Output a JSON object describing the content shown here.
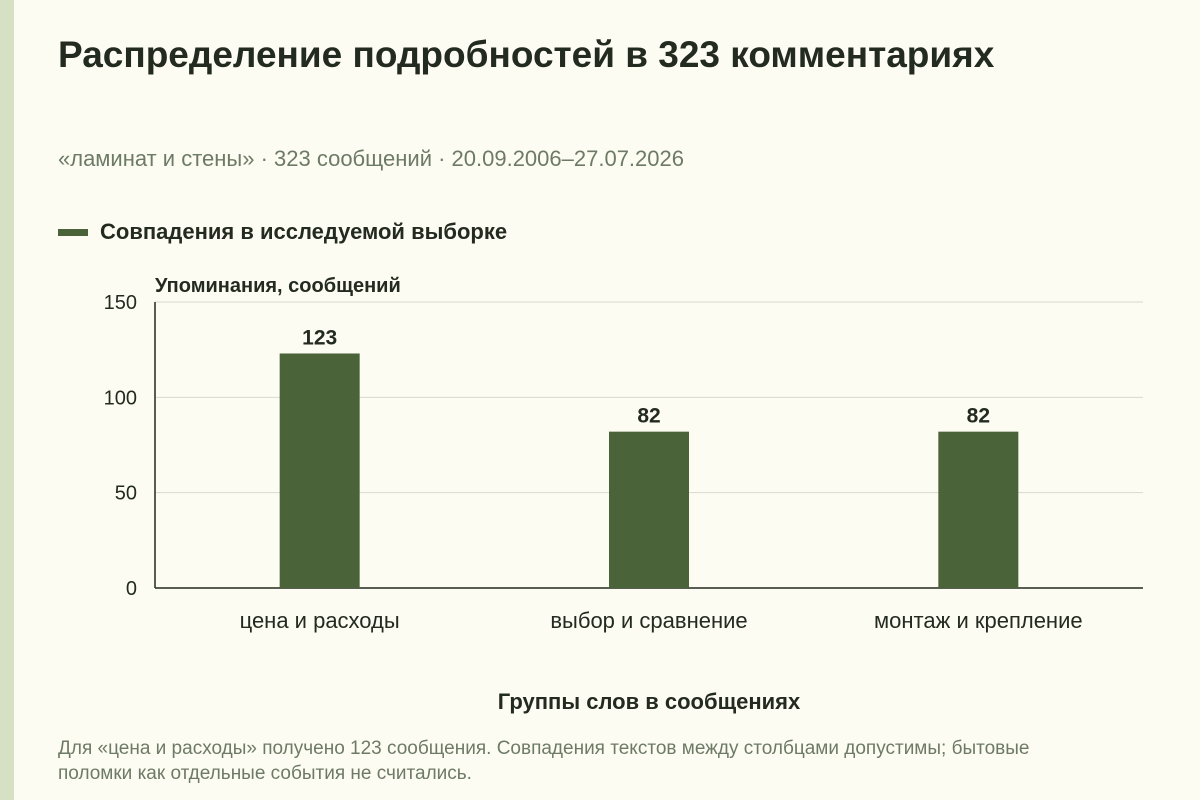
{
  "title": "Распределение подробностей в 323 комментариях",
  "subtitle": "«ламинат и стены» · 323 сообщений · 20.09.2006–27.07.2026",
  "colors": {
    "background": "#fdfcf3",
    "bar": "#4a6339",
    "stripe": "#d6e0c3",
    "text": "#232a1f",
    "muted": "#6d7a66",
    "grid": "#d9d9d0"
  },
  "note": "Для «цена и расходы» получено 123 сообщения. Совпадения текстов между столбцами допустимы; бытовые поломки как отдельные события не считались.",
  "chart_data": {
    "type": "bar",
    "categories": [
      "цена и расходы",
      "выбор и сравнение",
      "монтаж и крепление"
    ],
    "series": [
      {
        "name": "Совпадения в исследуемой выборке",
        "values": [
          123,
          82,
          82
        ]
      }
    ],
    "xlabel": "Группы слов в сообщениях",
    "ylabel": "Упоминания, сообщений",
    "ylim": [
      0,
      150
    ],
    "yticks": [
      0,
      50,
      100,
      150
    ],
    "data_labels": [
      "123",
      "82",
      "82"
    ],
    "grid": true,
    "legend_position": "top-left"
  }
}
